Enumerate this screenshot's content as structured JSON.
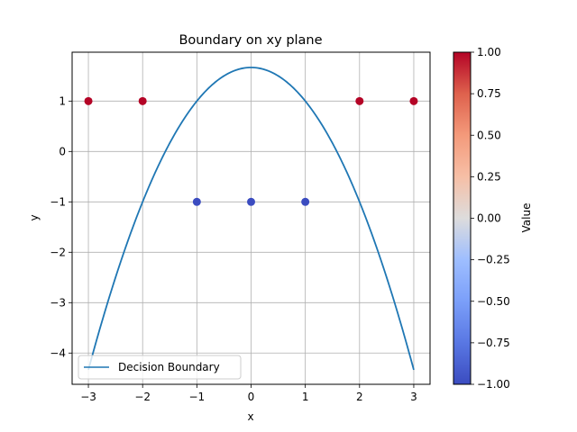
{
  "chart_data": {
    "type": "scatter",
    "title": "Boundary on xy plane",
    "xlabel": "x",
    "ylabel": "y",
    "xlim": [
      -3.3,
      3.3
    ],
    "ylim": [
      -4.62,
      1.97
    ],
    "xticks": [
      -3,
      -2,
      -1,
      0,
      1,
      2,
      3
    ],
    "yticks": [
      -4,
      -3,
      -2,
      -1,
      0,
      1
    ],
    "grid": true,
    "points": [
      {
        "x": -3,
        "y": 1,
        "value": 1
      },
      {
        "x": -2,
        "y": 1,
        "value": 1
      },
      {
        "x": 2,
        "y": 1,
        "value": 1
      },
      {
        "x": 3,
        "y": 1,
        "value": 1
      },
      {
        "x": -1,
        "y": -1,
        "value": -1
      },
      {
        "x": 0,
        "y": -1,
        "value": -1
      },
      {
        "x": 1,
        "y": -1,
        "value": -1
      }
    ],
    "boundary": {
      "name": "Decision Boundary",
      "equation": "y = 5/3 - 2/3 x^2",
      "x_range": [
        -3,
        3
      ],
      "color": "#1f77b4"
    },
    "colorbar": {
      "label": "Value",
      "min": -1.0,
      "max": 1.0,
      "ticks": [
        "1.00",
        "0.75",
        "0.50",
        "0.25",
        "0.00",
        "−0.25",
        "−0.50",
        "−0.75",
        "−1.00"
      ],
      "tick_values": [
        1.0,
        0.75,
        0.5,
        0.25,
        0.0,
        -0.25,
        -0.5,
        -0.75,
        -1.0
      ],
      "colormap": "coolwarm",
      "color_low": "#3b4cc0",
      "color_mid": "#dddddd",
      "color_high": "#b40426"
    },
    "legend": {
      "placement": "lower-left",
      "entries": [
        "Decision Boundary"
      ]
    }
  }
}
